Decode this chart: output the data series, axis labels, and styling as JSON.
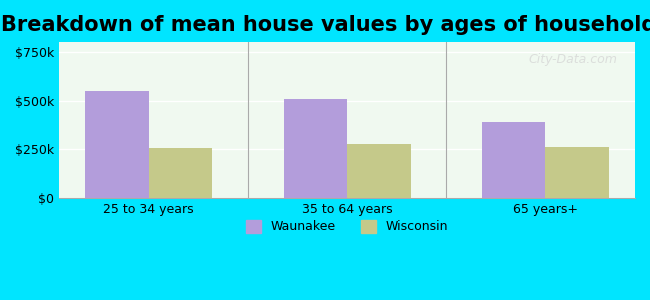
{
  "title": "Breakdown of mean house values by ages of householders",
  "categories": [
    "25 to 34 years",
    "35 to 64 years",
    "65 years+"
  ],
  "waunakee": [
    550000,
    510000,
    390000
  ],
  "wisconsin": [
    255000,
    275000,
    260000
  ],
  "waunakee_color": "#b39ddb",
  "wisconsin_color": "#c5c98a",
  "ylim": [
    0,
    800000
  ],
  "yticks": [
    0,
    250000,
    500000,
    750000
  ],
  "ytick_labels": [
    "$0",
    "$250k",
    "$500k",
    "$750k"
  ],
  "legend_waunakee": "Waunakee",
  "legend_wisconsin": "Wisconsin",
  "bar_width": 0.32,
  "bg_outer": "#00e5ff",
  "bg_plot_top": "#e8f5e9",
  "bg_plot_bottom": "#f0f9f0",
  "title_fontsize": 15,
  "watermark": "City-Data.com"
}
